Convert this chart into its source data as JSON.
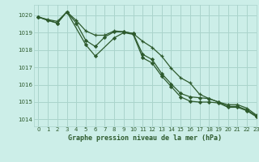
{
  "title": "Graphe pression niveau de la mer (hPa)",
  "bg_color": "#cceee8",
  "grid_color": "#aad4cc",
  "line_color": "#2d5a2d",
  "xlim": [
    -0.5,
    23
  ],
  "ylim": [
    1013.6,
    1020.6
  ],
  "yticks": [
    1014,
    1015,
    1016,
    1017,
    1018,
    1019,
    1020
  ],
  "xticks": [
    0,
    1,
    2,
    3,
    4,
    5,
    6,
    7,
    8,
    9,
    10,
    11,
    12,
    13,
    14,
    15,
    16,
    17,
    18,
    19,
    20,
    21,
    22,
    23
  ],
  "series1_x": [
    0,
    1,
    2,
    3,
    4,
    5,
    6,
    7,
    8,
    9,
    10,
    11,
    12,
    13,
    14,
    15,
    16,
    17,
    18,
    19,
    20,
    21,
    22,
    23
  ],
  "series1_y": [
    1019.9,
    1019.75,
    1019.65,
    1020.2,
    1019.7,
    1019.1,
    1018.85,
    1018.85,
    1019.1,
    1019.05,
    1018.95,
    1018.5,
    1018.15,
    1017.65,
    1016.95,
    1016.4,
    1016.1,
    1015.45,
    1015.2,
    1015.0,
    1014.85,
    1014.85,
    1014.65,
    1014.25
  ],
  "series2_x": [
    0,
    1,
    2,
    3,
    4,
    5,
    6,
    7,
    8,
    9,
    10,
    11,
    12,
    13,
    14,
    15,
    16,
    17,
    18,
    19,
    20,
    21,
    22,
    23
  ],
  "series2_y": [
    1019.9,
    1019.7,
    1019.55,
    1020.2,
    1019.55,
    1018.55,
    1018.2,
    1018.75,
    1019.05,
    1019.05,
    1018.95,
    1017.75,
    1017.45,
    1016.65,
    1016.05,
    1015.5,
    1015.3,
    1015.25,
    1015.2,
    1015.0,
    1014.75,
    1014.75,
    1014.55,
    1014.2
  ],
  "series3_x": [
    0,
    2,
    3,
    5,
    6,
    8,
    9,
    10,
    11,
    12,
    13,
    14,
    15,
    16,
    17,
    18,
    19,
    20,
    21,
    22,
    23
  ],
  "series3_y": [
    1019.9,
    1019.55,
    1020.2,
    1018.3,
    1017.65,
    1018.7,
    1019.0,
    1018.9,
    1017.55,
    1017.25,
    1016.5,
    1015.9,
    1015.3,
    1015.05,
    1015.0,
    1015.0,
    1014.95,
    1014.7,
    1014.7,
    1014.5,
    1014.15
  ]
}
